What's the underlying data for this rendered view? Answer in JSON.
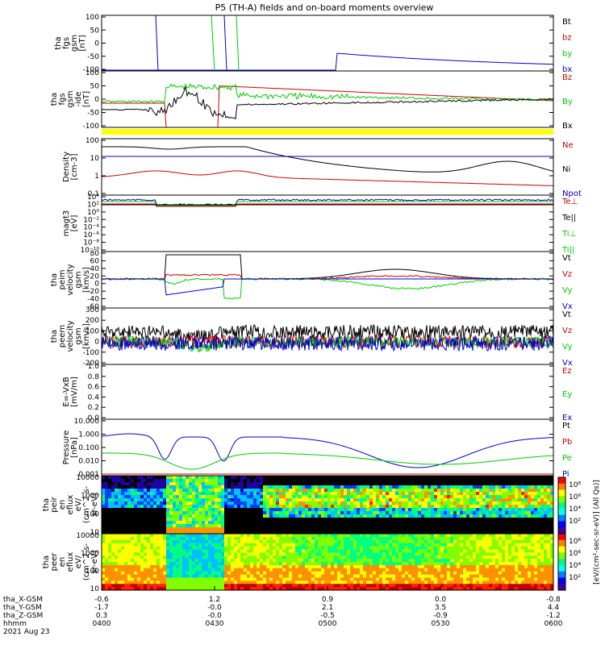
{
  "title": "P5 (TH-A) fields and on-board moments overview",
  "chart_data": {
    "type": "line",
    "time_ticks": [
      "0400",
      "0430",
      "0500",
      "0530",
      "0600"
    ],
    "date_label": "2021 Aug 23",
    "ephemeris": [
      {
        "label": "tha_X-GSM",
        "values": [
          "-0.6",
          "1.2",
          "0.9",
          "0.0",
          "-0.8"
        ]
      },
      {
        "label": "tha_Y-GSM",
        "values": [
          "-1.7",
          "-0.0",
          "2.1",
          "3.5",
          "4.4"
        ]
      },
      {
        "label": "tha_Z-GSM",
        "values": [
          "0.3",
          "-0.0",
          "-0.5",
          "-0.9",
          "-1.2"
        ]
      },
      {
        "label": "hhmm",
        "values": [
          "0400",
          "0430",
          "0500",
          "0530",
          "0600"
        ]
      }
    ],
    "panels": [
      {
        "ylabel": [
          "tha",
          "fgs",
          "gsm",
          "[nT]"
        ],
        "yticks": [
          "100",
          "50",
          "0",
          "-50",
          "-100"
        ],
        "legend": [
          {
            "name": "Bt",
            "color": "#000000"
          },
          {
            "name": "bz",
            "color": "#cc0000"
          },
          {
            "name": "by",
            "color": "#00cc00"
          },
          {
            "name": "bx",
            "color": "#0000cc"
          }
        ]
      },
      {
        "ylabel": [
          "tha",
          "fgs",
          "gsm",
          "-ide",
          "[nT]"
        ],
        "yticks": [
          "100",
          "50",
          "0",
          "-50",
          "-100"
        ],
        "legend": [
          {
            "name": "Bz",
            "color": "#cc0000"
          },
          {
            "name": "By",
            "color": "#00cc00"
          },
          {
            "name": "Bx",
            "color": "#000000"
          }
        ]
      },
      {
        "ylabel": [
          "Density",
          "[cm-3]"
        ],
        "yticks": [
          "100",
          "10",
          "1",
          "0.1"
        ],
        "legend": [
          {
            "name": "Ne",
            "color": "#cc0000"
          },
          {
            "name": "Ni",
            "color": "#000000"
          },
          {
            "name": "Npot",
            "color": "#0000cc"
          }
        ]
      },
      {
        "ylabel": [
          "magt3",
          "[eV]"
        ],
        "yticks": [
          "10⁴",
          "10²",
          "10⁰",
          "10⁻²",
          "10⁻⁴",
          "10⁻⁶",
          "10⁻⁸",
          "10⁻¹⁰"
        ],
        "legend": [
          {
            "name": "Te⊥",
            "color": "#cc0000"
          },
          {
            "name": "Te||",
            "color": "#000000"
          },
          {
            "name": "Ti⊥",
            "color": "#00cc00"
          },
          {
            "name": "Ti||",
            "color": "#00cc00"
          }
        ]
      },
      {
        "ylabel": [
          "tha",
          "peim",
          "velocity",
          "gsm",
          "[km/s]"
        ],
        "yticks": [
          "80",
          "60",
          "40",
          "20",
          "0",
          "-20",
          "-40",
          "-60"
        ],
        "legend": [
          {
            "name": "Vt",
            "color": "#000000"
          },
          {
            "name": "Vz",
            "color": "#cc0000"
          },
          {
            "name": "Vy",
            "color": "#00cc00"
          },
          {
            "name": "Vx",
            "color": "#0000cc"
          }
        ]
      },
      {
        "ylabel": [
          "tha",
          "peem",
          "velocity",
          "gsm",
          "[km/s]"
        ],
        "yticks": [
          "300",
          "200",
          "100",
          "0",
          "-100",
          "-200"
        ],
        "legend": [
          {
            "name": "Vt",
            "color": "#000000"
          },
          {
            "name": "Vz",
            "color": "#cc0000"
          },
          {
            "name": "Vy",
            "color": "#00cc00"
          },
          {
            "name": "Vx",
            "color": "#0000cc"
          }
        ]
      },
      {
        "ylabel": [
          "E=-VxB",
          "[mV/m]"
        ],
        "yticks": [
          "1.0",
          "0.8",
          "0.6",
          "0.4",
          "0.2",
          "0.0"
        ],
        "legend": [
          {
            "name": "Ez",
            "color": "#cc0000"
          },
          {
            "name": "Ey",
            "color": "#00cc00"
          },
          {
            "name": "Ex",
            "color": "#0000cc"
          }
        ]
      },
      {
        "ylabel": [
          "Pressure",
          "[nPa]"
        ],
        "yticks": [
          "10.000",
          "1.000",
          "0.100",
          "0.010",
          "0.001"
        ],
        "legend": [
          {
            "name": "Pt",
            "color": "#000000"
          },
          {
            "name": "Pb",
            "color": "#cc0000"
          },
          {
            "name": "Pe",
            "color": "#00cc00"
          },
          {
            "name": "Pi",
            "color": "#0000cc"
          }
        ]
      },
      {
        "ylabel": [
          "tha",
          "peir",
          "en",
          "eflux",
          "eV/",
          "(cm^2-s-",
          "sr-eV)"
        ],
        "yticks": [
          "10000",
          "1000",
          "100",
          "10"
        ]
      },
      {
        "ylabel": [
          "tha",
          "peer",
          "en",
          "eflux",
          "eV/",
          "(cm^2-s-",
          "sr-eV)"
        ],
        "yticks": [
          "10000",
          "1000",
          "100",
          "10"
        ]
      }
    ],
    "colorbar": {
      "ticks": [
        "10⁸",
        "10⁶",
        "10⁴",
        "10²",
        "10⁸",
        "10⁶",
        "10⁴",
        "10²"
      ],
      "label": "[eV/(cm²-sec-sr-eV)] (All Qs)]"
    }
  }
}
